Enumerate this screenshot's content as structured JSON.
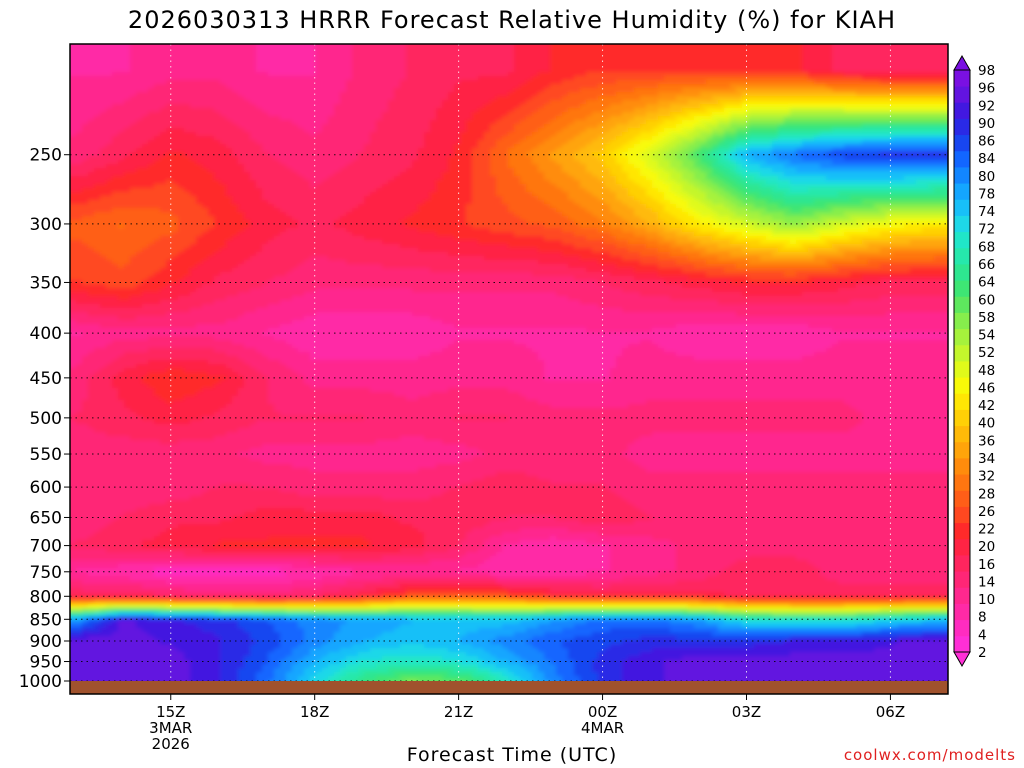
{
  "chart_data": {
    "type": "heatmap",
    "title": "2026030313 HRRR Forecast Relative Humidity (%) for KIAH",
    "xlabel": "Forecast Time (UTC)",
    "ylabel": "",
    "credit": "coolwx.com/modelts",
    "x_hours": [
      13,
      14,
      15,
      16,
      17,
      18,
      19,
      20,
      21,
      22,
      23,
      24,
      25,
      26,
      27,
      28,
      29,
      30,
      31
    ],
    "x_ticks": [
      {
        "hour": 15,
        "lines": [
          "15Z",
          "3MAR",
          "2026"
        ]
      },
      {
        "hour": 18,
        "lines": [
          "18Z"
        ]
      },
      {
        "hour": 21,
        "lines": [
          "21Z"
        ]
      },
      {
        "hour": 24,
        "lines": [
          "00Z",
          "4MAR"
        ]
      },
      {
        "hour": 27,
        "lines": [
          "03Z"
        ]
      },
      {
        "hour": 30,
        "lines": [
          "06Z"
        ]
      }
    ],
    "xlim": [
      12.9,
      31.2
    ],
    "levels_hpa": [
      200,
      250,
      300,
      350,
      400,
      450,
      500,
      550,
      600,
      650,
      700,
      750,
      800,
      850,
      900,
      950,
      1000
    ],
    "y_ticks": [
      250,
      300,
      350,
      400,
      450,
      500,
      550,
      600,
      650,
      700,
      750,
      800,
      850,
      900,
      950,
      1000
    ],
    "ylim": [
      200,
      1025
    ],
    "y_scale": "log-pressure",
    "grid": true,
    "surface_color": "#a0522d",
    "rh_values": [
      [
        8,
        8,
        10,
        10,
        8,
        8,
        12,
        14,
        16,
        16,
        20,
        22,
        22,
        22,
        20,
        20,
        16,
        14,
        14
      ],
      [
        12,
        16,
        20,
        18,
        14,
        12,
        14,
        16,
        20,
        28,
        34,
        40,
        50,
        62,
        78,
        84,
        88,
        90,
        90
      ],
      [
        26,
        28,
        26,
        22,
        18,
        16,
        18,
        20,
        22,
        24,
        26,
        30,
        36,
        44,
        50,
        56,
        50,
        46,
        44
      ],
      [
        22,
        24,
        20,
        16,
        14,
        12,
        12,
        12,
        12,
        12,
        12,
        14,
        16,
        18,
        20,
        20,
        18,
        16,
        16
      ],
      [
        8,
        10,
        10,
        10,
        8,
        6,
        6,
        6,
        8,
        8,
        8,
        8,
        8,
        6,
        6,
        6,
        8,
        8,
        8
      ],
      [
        12,
        18,
        22,
        20,
        14,
        10,
        10,
        10,
        10,
        10,
        8,
        8,
        10,
        10,
        10,
        10,
        10,
        10,
        10
      ],
      [
        14,
        16,
        18,
        16,
        14,
        14,
        14,
        12,
        14,
        14,
        12,
        12,
        12,
        12,
        12,
        12,
        12,
        10,
        10
      ],
      [
        12,
        12,
        12,
        12,
        10,
        10,
        10,
        10,
        10,
        12,
        12,
        12,
        10,
        10,
        10,
        10,
        10,
        10,
        10
      ],
      [
        12,
        12,
        12,
        14,
        14,
        12,
        12,
        12,
        14,
        16,
        14,
        14,
        12,
        12,
        12,
        12,
        12,
        12,
        12
      ],
      [
        12,
        14,
        16,
        16,
        18,
        18,
        18,
        16,
        16,
        14,
        14,
        16,
        14,
        12,
        12,
        12,
        12,
        12,
        12
      ],
      [
        14,
        16,
        18,
        20,
        20,
        20,
        20,
        18,
        14,
        8,
        6,
        8,
        10,
        12,
        12,
        12,
        12,
        12,
        12
      ],
      [
        8,
        6,
        4,
        4,
        4,
        6,
        8,
        8,
        8,
        6,
        6,
        8,
        10,
        12,
        16,
        16,
        12,
        12,
        12
      ],
      [
        16,
        16,
        14,
        12,
        12,
        14,
        18,
        24,
        26,
        24,
        20,
        18,
        18,
        18,
        16,
        16,
        16,
        16,
        16
      ],
      [
        80,
        95,
        92,
        90,
        86,
        82,
        80,
        78,
        76,
        76,
        80,
        84,
        84,
        80,
        72,
        70,
        70,
        74,
        76
      ],
      [
        96,
        96,
        94,
        92,
        88,
        82,
        78,
        76,
        78,
        82,
        86,
        88,
        90,
        90,
        90,
        92,
        92,
        94,
        96
      ],
      [
        96,
        96,
        96,
        92,
        86,
        78,
        72,
        70,
        72,
        78,
        84,
        90,
        94,
        96,
        96,
        96,
        96,
        96,
        96
      ],
      [
        96,
        96,
        96,
        92,
        84,
        74,
        64,
        58,
        60,
        70,
        82,
        90,
        94,
        96,
        96,
        96,
        96,
        96,
        96
      ]
    ],
    "colorbar": {
      "labels": [
        2,
        4,
        8,
        10,
        14,
        16,
        20,
        22,
        26,
        28,
        32,
        34,
        36,
        40,
        42,
        46,
        48,
        52,
        54,
        58,
        60,
        64,
        66,
        68,
        72,
        74,
        78,
        80,
        84,
        86,
        90,
        92,
        96,
        98
      ],
      "colors": [
        "#ff2fd6",
        "#ff2cc0",
        "#ff2aa6",
        "#ff288e",
        "#ff2676",
        "#ff255e",
        "#ff2444",
        "#ff2a2a",
        "#ff4820",
        "#ff5e18",
        "#ff7610",
        "#ff8c0c",
        "#ffa40a",
        "#ffba08",
        "#ffd006",
        "#ffe604",
        "#f8fa08",
        "#e0fa1a",
        "#c4f62c",
        "#a6f23c",
        "#86ee4c",
        "#5ee85e",
        "#3ee674",
        "#2ee690",
        "#26e8ac",
        "#20e6c8",
        "#1ed8e8",
        "#18c0f8",
        "#14a6ff",
        "#1286ff",
        "#1266ff",
        "#1846f0",
        "#2a2ae6",
        "#4218e0",
        "#6214e0",
        "#7a10e2"
      ]
    }
  }
}
